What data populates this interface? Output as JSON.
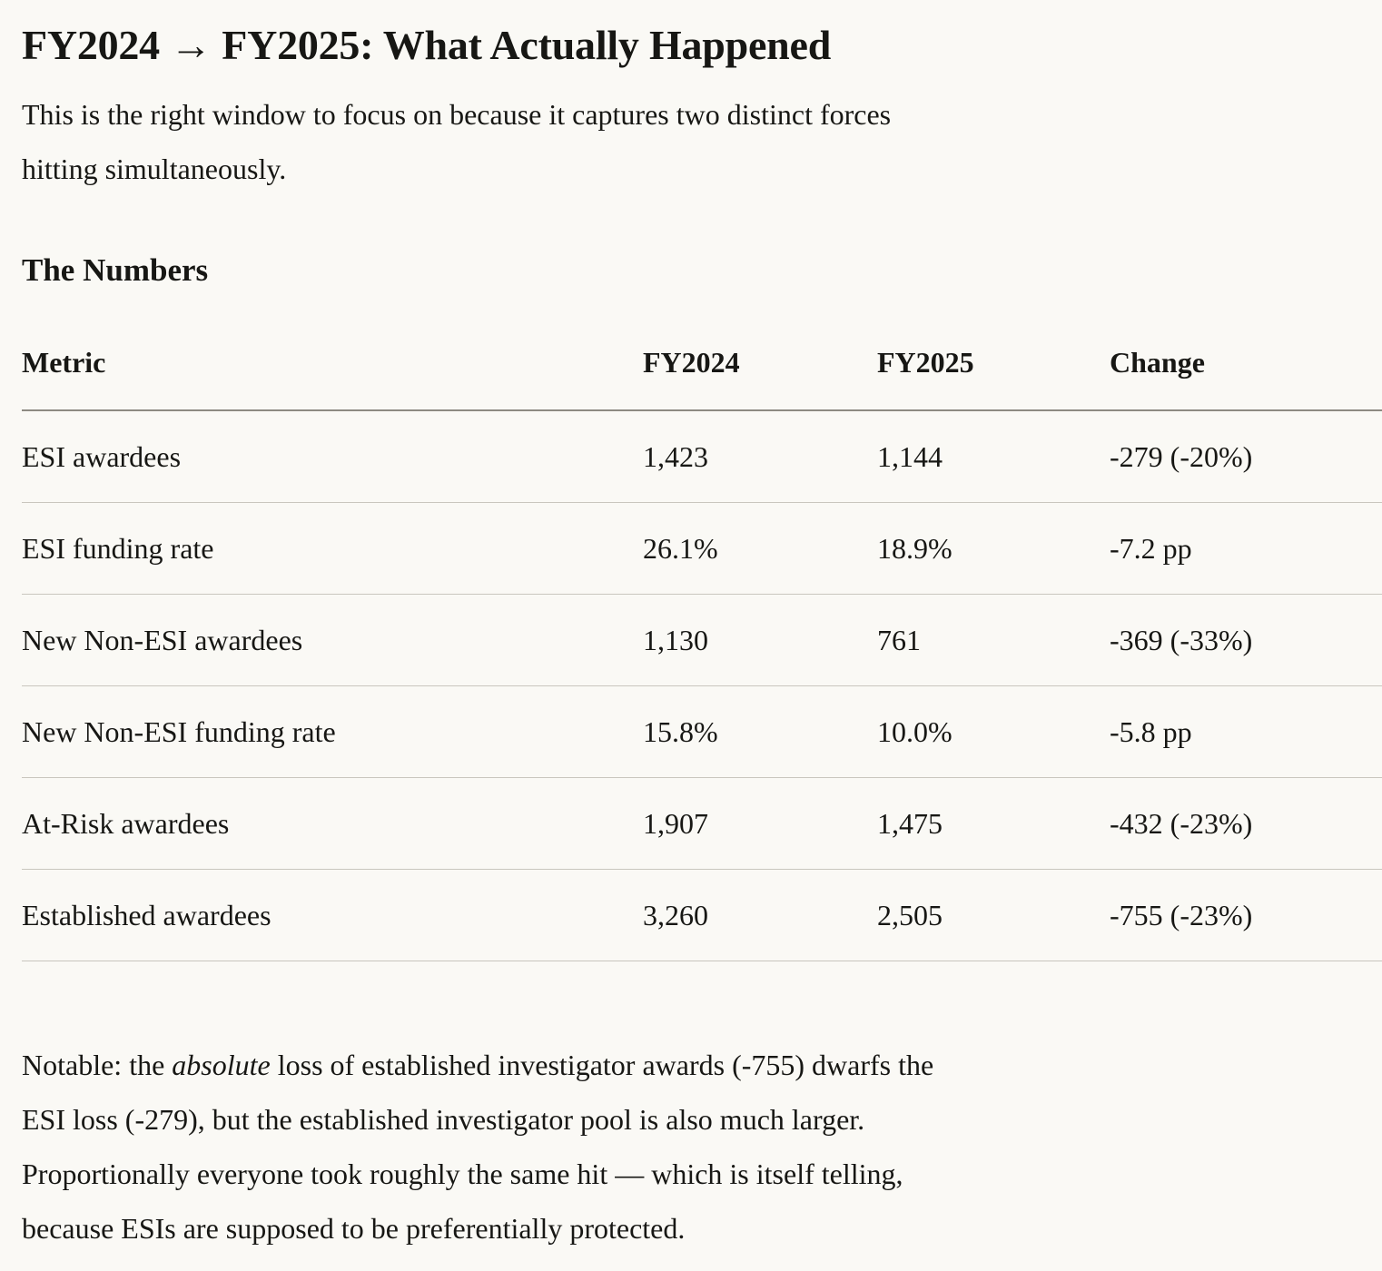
{
  "doc": {
    "title": "FY2024 → FY2025: What Actually Happened",
    "intro": "This is the right window to focus on because it captures two distinct forces\nhitting simultaneously.",
    "section_heading": "The Numbers"
  },
  "table": {
    "columns": [
      "Metric",
      "FY2024",
      "FY2025",
      "Change"
    ],
    "rows": [
      {
        "metric": "ESI awardees",
        "fy2024": "1,423",
        "fy2025": "1,144",
        "change": "-279 (-20%)"
      },
      {
        "metric": "ESI funding rate",
        "fy2024": "26.1%",
        "fy2025": "18.9%",
        "change": "-7.2 pp"
      },
      {
        "metric": "New Non-ESI awardees",
        "fy2024": "1,130",
        "fy2025": "761",
        "change": "-369 (-33%)"
      },
      {
        "metric": "New Non-ESI funding rate",
        "fy2024": "15.8%",
        "fy2025": "10.0%",
        "change": "-5.8 pp"
      },
      {
        "metric": "At-Risk awardees",
        "fy2024": "1,907",
        "fy2025": "1,475",
        "change": "-432 (-23%)"
      },
      {
        "metric": "Established awardees",
        "fy2024": "3,260",
        "fy2025": "2,505",
        "change": "-755 (-23%)"
      }
    ]
  },
  "note": {
    "prefix": "Notable: the ",
    "italic": "absolute",
    "suffix": " loss of established investigator awards (-755) dwarfs the\nESI loss (-279), but the established investigator pool is also much larger.\nProportionally everyone took roughly the same hit — which is itself telling,\nbecause ESIs are supposed to be preferentially protected."
  },
  "colors": {
    "background": "#faf9f5",
    "text": "#171714",
    "header_rule": "#8d8a82",
    "row_rule": "#c9c6be"
  }
}
